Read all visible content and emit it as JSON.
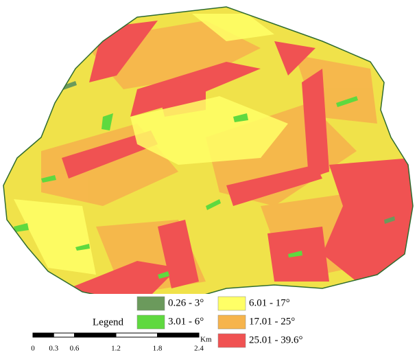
{
  "map": {
    "legend": {
      "title": "Legend",
      "items": [
        {
          "label": "0.26 - 3°",
          "color": "#6b9a5c"
        },
        {
          "label": "3.01 - 6°",
          "color": "#5fd93f"
        },
        {
          "label": "6.01 - 17°",
          "color": "#ffff66"
        },
        {
          "label": "17.01 - 25°",
          "color": "#f6b44c"
        },
        {
          "label": "25.01 - 39.6°",
          "color": "#f05252"
        }
      ]
    },
    "scale_bar": {
      "unit": "Km",
      "ticks": [
        0,
        0.3,
        0.6,
        1.2,
        1.8,
        2.4
      ]
    }
  }
}
